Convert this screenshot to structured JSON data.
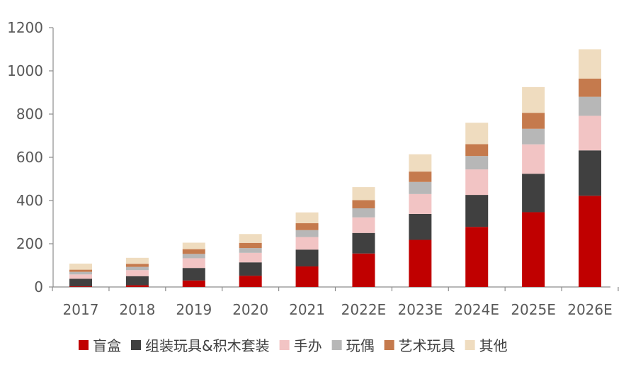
{
  "chart_data": {
    "type": "bar",
    "stacked": true,
    "categories": [
      "2017",
      "2018",
      "2019",
      "2020",
      "2021",
      "2022E",
      "2023E",
      "2024E",
      "2025E",
      "2026E"
    ],
    "series": [
      {
        "name": "盲盒",
        "color": "#c00000",
        "values": [
          3,
          8,
          30,
          52,
          95,
          155,
          218,
          278,
          346,
          422
        ]
      },
      {
        "name": "组装玩具&积木套装",
        "color": "#404040",
        "values": [
          35,
          42,
          58,
          62,
          78,
          95,
          120,
          148,
          178,
          210
        ]
      },
      {
        "name": "手办",
        "color": "#f2c4c4",
        "values": [
          20,
          28,
          45,
          44,
          58,
          72,
          92,
          118,
          136,
          160
        ]
      },
      {
        "name": "玩偶",
        "color": "#b7b7b7",
        "values": [
          12,
          15,
          20,
          22,
          32,
          42,
          56,
          62,
          72,
          88
        ]
      },
      {
        "name": "艺术玩具",
        "color": "#c57a4d",
        "values": [
          10,
          14,
          22,
          24,
          32,
          38,
          48,
          55,
          74,
          84
        ]
      },
      {
        "name": "其他",
        "color": "#efdcbf",
        "values": [
          28,
          28,
          30,
          41,
          50,
          60,
          80,
          99,
          119,
          136
        ]
      }
    ],
    "title": "",
    "xlabel": "",
    "ylabel": "",
    "ylim": [
      0,
      1200
    ],
    "yticks": [
      "0",
      "200",
      "400",
      "600",
      "800",
      "1000",
      "1200"
    ],
    "grid": false,
    "legend_position": "bottom"
  }
}
